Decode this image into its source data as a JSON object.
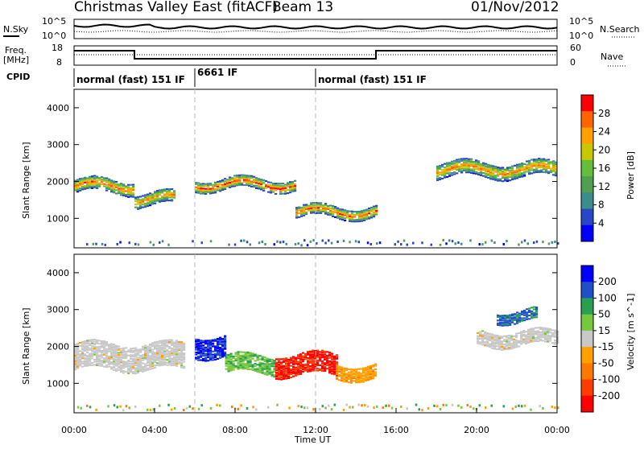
{
  "header": {
    "title": "Christmas Valley East (fitACF)",
    "beam": "Beam 13",
    "date": "01/Nov/2012"
  },
  "noise_panel": {
    "left_label": "N.Sky",
    "right_label": "N.Search",
    "ticks": [
      "10^5",
      "10^0"
    ]
  },
  "freq_panel": {
    "left_label_line1": "Freq.",
    "left_label_line2": "[MHz]",
    "left_ticks": [
      "18",
      "8"
    ],
    "right_label": "Nave",
    "right_ticks": [
      "60",
      "0"
    ]
  },
  "cpid": {
    "label": "CPID",
    "segments": [
      "normal (fast) 151 IF",
      "6661 IF",
      "normal (fast) 151 IF"
    ]
  },
  "colors": {
    "power": [
      "#0000ff",
      "#2846c8",
      "#3c8c8c",
      "#50a050",
      "#64be3c",
      "#c8c800",
      "#ffa000",
      "#ff6400",
      "#ff0000"
    ],
    "velocity": [
      "#0000ff",
      "#1e50c8",
      "#28a050",
      "#78c83c",
      "#c8c8c8",
      "#ffa000",
      "#ff7800",
      "#ff3c00",
      "#ff0000"
    ]
  },
  "chart_data": [
    {
      "type": "heatmap",
      "name": "power",
      "ylabel": "Slant Range [km]",
      "yticks": [
        "1000",
        "2000",
        "3000",
        "4000"
      ],
      "ylim": [
        200,
        4500
      ],
      "colorbar_label": "Power [dB]",
      "colorbar_ticks": [
        "28",
        "24",
        "20",
        "16",
        "12",
        "8",
        "4"
      ],
      "colorbar_range": [
        0,
        32
      ],
      "echo_bands": [
        {
          "t_start": 0.0,
          "t_end": 3.0,
          "range_center_km": 1850,
          "width_km": 350,
          "peak_db": 28
        },
        {
          "t_start": 3.0,
          "t_end": 5.0,
          "range_center_km": 1500,
          "width_km": 350,
          "peak_db": 26
        },
        {
          "t_start": 6.0,
          "t_end": 11.0,
          "range_center_km": 1900,
          "width_km": 300,
          "peak_db": 30
        },
        {
          "t_start": 11.0,
          "t_end": 15.0,
          "range_center_km": 1150,
          "width_km": 300,
          "peak_db": 28
        },
        {
          "t_start": 18.0,
          "t_end": 24.0,
          "range_center_km": 2300,
          "width_km": 400,
          "peak_db": 26
        }
      ]
    },
    {
      "type": "heatmap",
      "name": "velocity",
      "ylabel": "Slant Range [km]",
      "yticks": [
        "1000",
        "2000",
        "3000",
        "4000"
      ],
      "ylim": [
        200,
        4500
      ],
      "xlabel": "Time UT",
      "xticks": [
        "00:00",
        "04:00",
        "08:00",
        "12:00",
        "16:00",
        "20:00",
        "00:00"
      ],
      "xlim": [
        0,
        24
      ],
      "colorbar_label": "Velocity [m s^-1]",
      "colorbar_ticks": [
        "200",
        "100",
        "50",
        "15",
        "-15",
        "-50",
        "-100",
        "-200"
      ],
      "colorbar_range": [
        -250,
        250
      ],
      "echo_bands": [
        {
          "t_start": 0.0,
          "t_end": 5.5,
          "range_center_km": 1700,
          "width_km": 700,
          "velocity": 0
        },
        {
          "t_start": 6.0,
          "t_end": 7.5,
          "range_center_km": 2000,
          "width_km": 600,
          "velocity": 200
        },
        {
          "t_start": 7.5,
          "t_end": 10.0,
          "range_center_km": 1500,
          "width_km": 500,
          "velocity": 80
        },
        {
          "t_start": 10.0,
          "t_end": 13.0,
          "range_center_km": 1500,
          "width_km": 600,
          "velocity": -200
        },
        {
          "t_start": 13.0,
          "t_end": 15.0,
          "range_center_km": 1300,
          "width_km": 400,
          "velocity": -60
        },
        {
          "t_start": 20.0,
          "t_end": 24.0,
          "range_center_km": 2200,
          "width_km": 400,
          "velocity": 0
        },
        {
          "t_start": 21.0,
          "t_end": 23.0,
          "range_center_km": 2800,
          "width_km": 300,
          "velocity": 150
        }
      ]
    }
  ]
}
